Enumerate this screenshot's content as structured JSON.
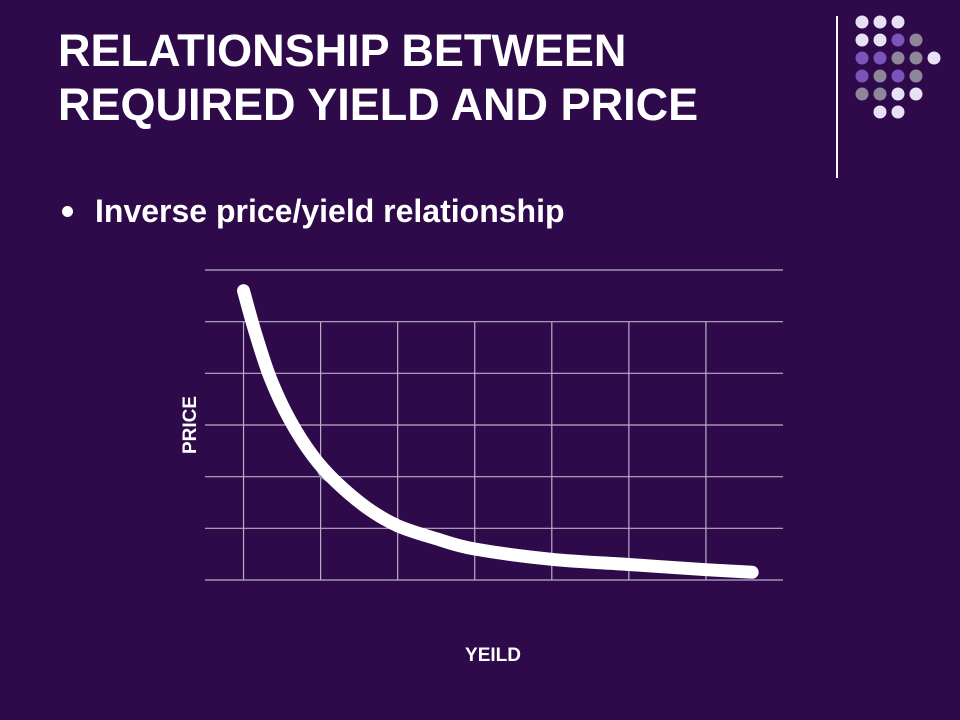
{
  "slide": {
    "title_line1": "RELATIONSHIP BETWEEN",
    "title_line2": "REQUIRED YIELD AND PRICE",
    "bullet": "Inverse price/yield relationship"
  },
  "colors": {
    "background": "#2e0a4a",
    "curve": "#ffffff",
    "segment": "#8f84a8",
    "grid": "#b8aec8"
  },
  "dots_palette": [
    "#e8e0f4",
    "#7a54b8",
    "#8d8799"
  ],
  "chart_data": {
    "type": "line",
    "title": "",
    "xlabel": "YEILD",
    "ylabel": "PRICE",
    "xlim": [
      0.5,
      8
    ],
    "ylim": [
      0,
      6
    ],
    "grid": true,
    "series": [
      {
        "kind": "curve",
        "points": [
          [
            1,
            5.6
          ],
          [
            1.15,
            4.8
          ],
          [
            1.35,
            3.9
          ],
          [
            1.6,
            3.1
          ],
          [
            1.9,
            2.4
          ],
          [
            2.2,
            1.9
          ],
          [
            2.6,
            1.4
          ],
          [
            3.0,
            1.05
          ],
          [
            3.5,
            0.8
          ],
          [
            4.0,
            0.6
          ],
          [
            5.0,
            0.4
          ],
          [
            6.0,
            0.3
          ],
          [
            7.0,
            0.2
          ],
          [
            7.6,
            0.15
          ]
        ]
      },
      {
        "kind": "segments",
        "points": [
          [
            1,
            5.6
          ],
          [
            1.3,
            4.2
          ],
          [
            2.0,
            2.0
          ],
          [
            3.0,
            1.0
          ]
        ]
      }
    ]
  }
}
